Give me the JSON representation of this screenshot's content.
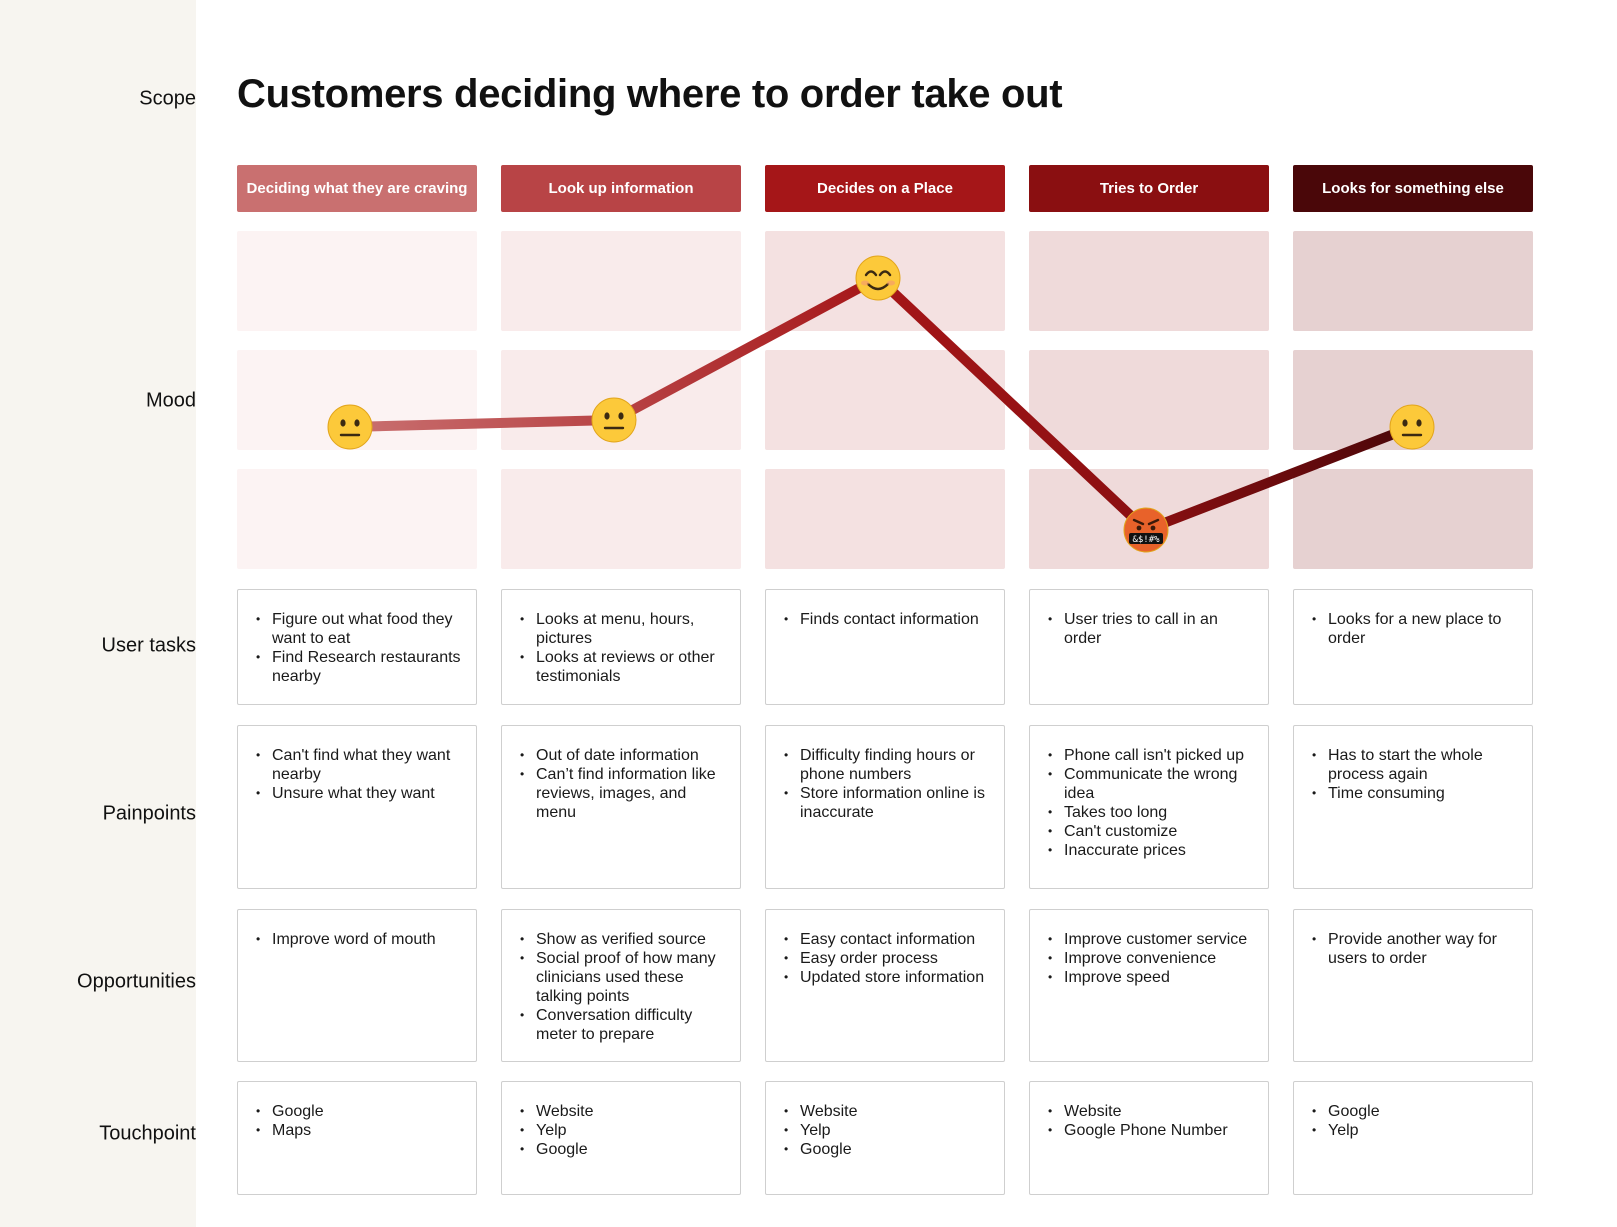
{
  "sidebar": {
    "labels": {
      "scope": "Scope",
      "mood": "Mood",
      "tasks": "User tasks",
      "pains": "Painpoints",
      "opps": "Opportunities",
      "touch": "Touchpoint"
    }
  },
  "title": "Customers deciding where to order take out",
  "stages": [
    {
      "label": "Deciding what they are craving",
      "color": "#c97070",
      "cell_color": "#fcf3f3",
      "mood": "neutral",
      "emoji": "😐",
      "mood_level": 1
    },
    {
      "label": "Look up information",
      "color": "#b84446",
      "cell_color": "#f9ebeb",
      "mood": "neutral",
      "emoji": "😐",
      "mood_level": 1
    },
    {
      "label": "Decides on a Place",
      "color": "#a51618",
      "cell_color": "#f4e1e1",
      "mood": "happy",
      "emoji": "😊",
      "mood_level": 2
    },
    {
      "label": "Tries to Order",
      "color": "#8a0f11",
      "cell_color": "#efdada",
      "mood": "angry",
      "emoji": "🤬",
      "mood_level": 0
    },
    {
      "label": "Looks for something else",
      "color": "#4a0709",
      "cell_color": "#e6d1d1",
      "mood": "neutral",
      "emoji": "😐",
      "mood_level": 1
    }
  ],
  "user_tasks": [
    [
      "Figure out what food they want to eat",
      "Find Research restaurants nearby"
    ],
    [
      "Looks at menu, hours, pictures",
      "Looks at reviews or other testimonials"
    ],
    [
      "Finds contact information"
    ],
    [
      "User tries to call in an order"
    ],
    [
      "Looks for a new place to order"
    ]
  ],
  "painpoints": [
    [
      "Can't find what they want nearby",
      "Unsure what they want"
    ],
    [
      "Out of date information",
      "Can’t find information like reviews, images, and menu"
    ],
    [
      "Difficulty finding hours or phone numbers",
      "Store information online is inaccurate"
    ],
    [
      "Phone call isn't picked up",
      "Communicate the wrong idea",
      "Takes too long",
      "Can't customize",
      "Inaccurate prices"
    ],
    [
      "Has to start the whole process again",
      "Time consuming"
    ]
  ],
  "opportunities": [
    [
      "Improve word of mouth"
    ],
    [
      "Show as verified source",
      "Social proof of how many clinicians used these talking points",
      "Conversation difficulty meter to prepare"
    ],
    [
      "Easy contact information",
      "Easy order process",
      "Updated store information"
    ],
    [
      "Improve customer service",
      "Improve convenience",
      "Improve speed"
    ],
    [
      "Provide another way for users to order"
    ]
  ],
  "touchpoints": [
    [
      "Google",
      "Maps"
    ],
    [
      "Website",
      "Yelp",
      "Google"
    ],
    [
      "Website",
      "Yelp",
      "Google"
    ],
    [
      "Website",
      "Google Phone Number"
    ],
    [
      "Google",
      "Yelp"
    ]
  ]
}
